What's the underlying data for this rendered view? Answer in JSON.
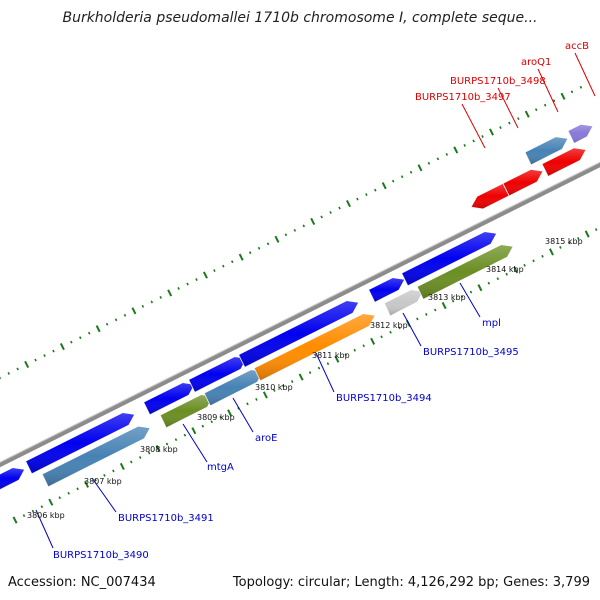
{
  "header": {
    "title": "Burkholderia pseudomallei 1710b chromosome I, complete seque..."
  },
  "footer": {
    "accession": "Accession: NC_007434",
    "summary": "Topology: circular; Length: 4,126,292 bp; Genes: 3,799"
  },
  "tick_labels": [
    "3806 kbp",
    "3807 kbp",
    "3808 kbp",
    "3809 kbp",
    "3810 kbp",
    "3811 kbp",
    "3812 kbp",
    "3813 kbp",
    "3814 kbp",
    "3815 kbp"
  ],
  "gene_labels": {
    "blue": [
      "BURPS1710b_3490",
      "BURPS1710b_3491",
      "mtgA",
      "aroE",
      "BURPS1710b_3494",
      "BURPS1710b_3495",
      "mpl"
    ],
    "red": [
      "BURPS1710b_3497",
      "BURPS1710b_3498",
      "aroQ1",
      "accB"
    ]
  },
  "colors": {
    "cds_blue": "#0000ee",
    "steel_blue": "#4682b4",
    "olive": "#6b8e23",
    "orange": "#ff8c00",
    "grey": "#c8c8c8",
    "red": "#ee0000",
    "lavender": "#8878d8",
    "label_blue": "#0000cc",
    "label_red": "#dd0000",
    "tick_green": "#1a7a1a",
    "backbone": "#8c8c8c"
  }
}
